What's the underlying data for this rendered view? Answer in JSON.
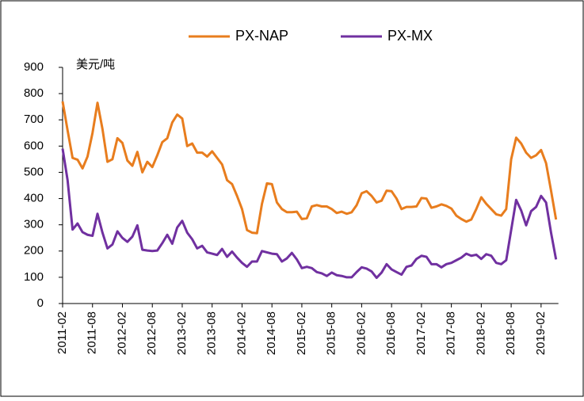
{
  "chart_data": {
    "type": "line",
    "annotation": "美元/吨",
    "categories": [
      "2011-02",
      null,
      null,
      null,
      null,
      null,
      "2011-08",
      null,
      null,
      null,
      null,
      null,
      "2012-02",
      null,
      null,
      null,
      null,
      null,
      "2012-08",
      null,
      null,
      null,
      null,
      null,
      "2013-02",
      null,
      null,
      null,
      null,
      null,
      "2013-08",
      null,
      null,
      null,
      null,
      null,
      "2014-02",
      null,
      null,
      null,
      null,
      null,
      "2014-08",
      null,
      null,
      null,
      null,
      null,
      "2015-02",
      null,
      null,
      null,
      null,
      null,
      "2015-08",
      null,
      null,
      null,
      null,
      null,
      "2016-02",
      null,
      null,
      null,
      null,
      null,
      "2016-08",
      null,
      null,
      null,
      null,
      null,
      "2017-02",
      null,
      null,
      null,
      null,
      null,
      "2017-08",
      null,
      null,
      null,
      null,
      null,
      "2018-02",
      null,
      null,
      null,
      null,
      null,
      "2018-08",
      null,
      null,
      null,
      null,
      null,
      "2019-02",
      null,
      null,
      null
    ],
    "series": [
      {
        "name": "PX-NAP",
        "color": "#e87d1e",
        "values": [
          770,
          660,
          555,
          548,
          515,
          560,
          650,
          765,
          665,
          540,
          550,
          630,
          612,
          545,
          525,
          578,
          500,
          540,
          520,
          565,
          615,
          630,
          690,
          720,
          705,
          600,
          610,
          575,
          575,
          560,
          580,
          555,
          530,
          470,
          455,
          410,
          360,
          280,
          270,
          268,
          380,
          458,
          455,
          385,
          360,
          348,
          348,
          350,
          322,
          325,
          370,
          375,
          370,
          370,
          360,
          345,
          350,
          342,
          348,
          375,
          420,
          428,
          410,
          385,
          392,
          430,
          428,
          400,
          360,
          368,
          368,
          370,
          402,
          400,
          365,
          370,
          378,
          372,
          362,
          335,
          322,
          312,
          320,
          360,
          405,
          380,
          360,
          340,
          335,
          360,
          550,
          632,
          610,
          575,
          555,
          565,
          585,
          535,
          430,
          320
        ]
      },
      {
        "name": "PX-MX",
        "color": "#7030a0",
        "values": [
          590,
          470,
          282,
          305,
          272,
          262,
          258,
          342,
          270,
          210,
          225,
          275,
          250,
          235,
          255,
          298,
          205,
          202,
          200,
          202,
          230,
          262,
          228,
          290,
          315,
          270,
          245,
          210,
          220,
          195,
          190,
          185,
          208,
          178,
          198,
          175,
          155,
          140,
          160,
          160,
          200,
          195,
          190,
          188,
          160,
          172,
          193,
          168,
          135,
          140,
          135,
          120,
          115,
          105,
          118,
          108,
          105,
          100,
          100,
          120,
          138,
          133,
          122,
          98,
          118,
          150,
          130,
          120,
          110,
          140,
          145,
          170,
          182,
          178,
          150,
          150,
          138,
          150,
          155,
          165,
          175,
          190,
          182,
          186,
          170,
          188,
          182,
          155,
          150,
          165,
          280,
          395,
          355,
          298,
          352,
          368,
          410,
          385,
          270,
          168
        ]
      }
    ],
    "ylim": [
      0,
      900
    ],
    "yticks": [
      0,
      100,
      200,
      300,
      400,
      500,
      600,
      700,
      800,
      900
    ],
    "grid": false
  }
}
